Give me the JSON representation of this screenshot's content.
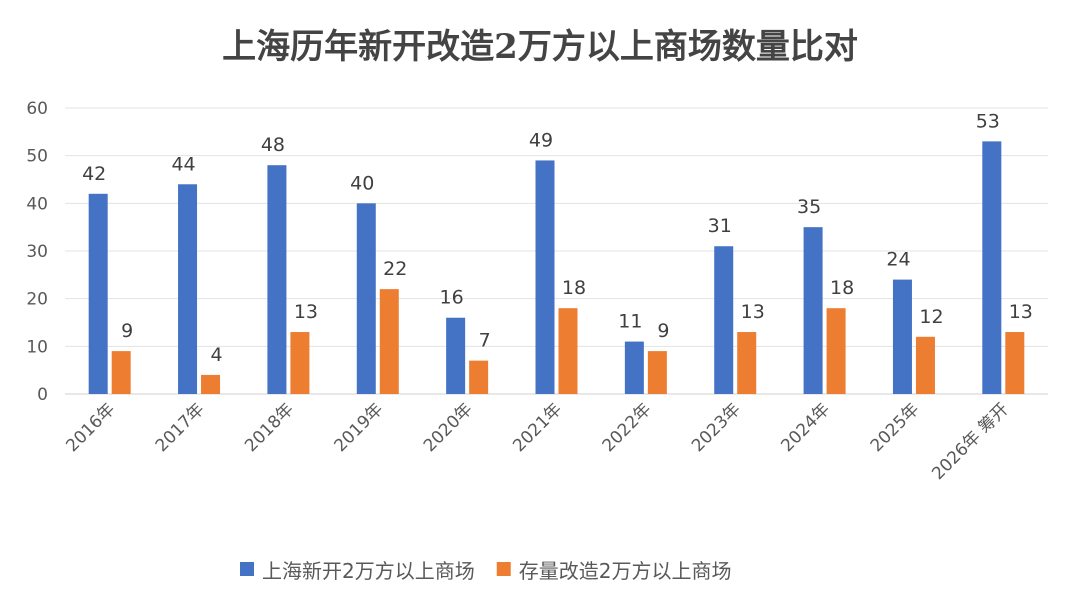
{
  "chart_data": {
    "type": "bar",
    "title": "上海历年新开改造2万方以上商场数量比对",
    "xlabel": "",
    "ylabel": "",
    "ylim": [
      0,
      60
    ],
    "yticks": [
      0,
      10,
      20,
      30,
      40,
      50,
      60
    ],
    "grid": true,
    "legend_position": "bottom",
    "categories": [
      "2016年",
      "2017年",
      "2018年",
      "2019年",
      "2020年",
      "2021年",
      "2022年",
      "2023年",
      "2024年",
      "2025年",
      "2026年 筹开"
    ],
    "series": [
      {
        "name": "上海新开2万方以上商场",
        "color": "#4472C4",
        "values": [
          42,
          44,
          48,
          40,
          16,
          49,
          11,
          31,
          35,
          24,
          53
        ]
      },
      {
        "name": "存量改造2万方以上商场",
        "color": "#ED7D31",
        "values": [
          9,
          4,
          13,
          22,
          7,
          18,
          9,
          13,
          18,
          12,
          13
        ]
      }
    ]
  }
}
